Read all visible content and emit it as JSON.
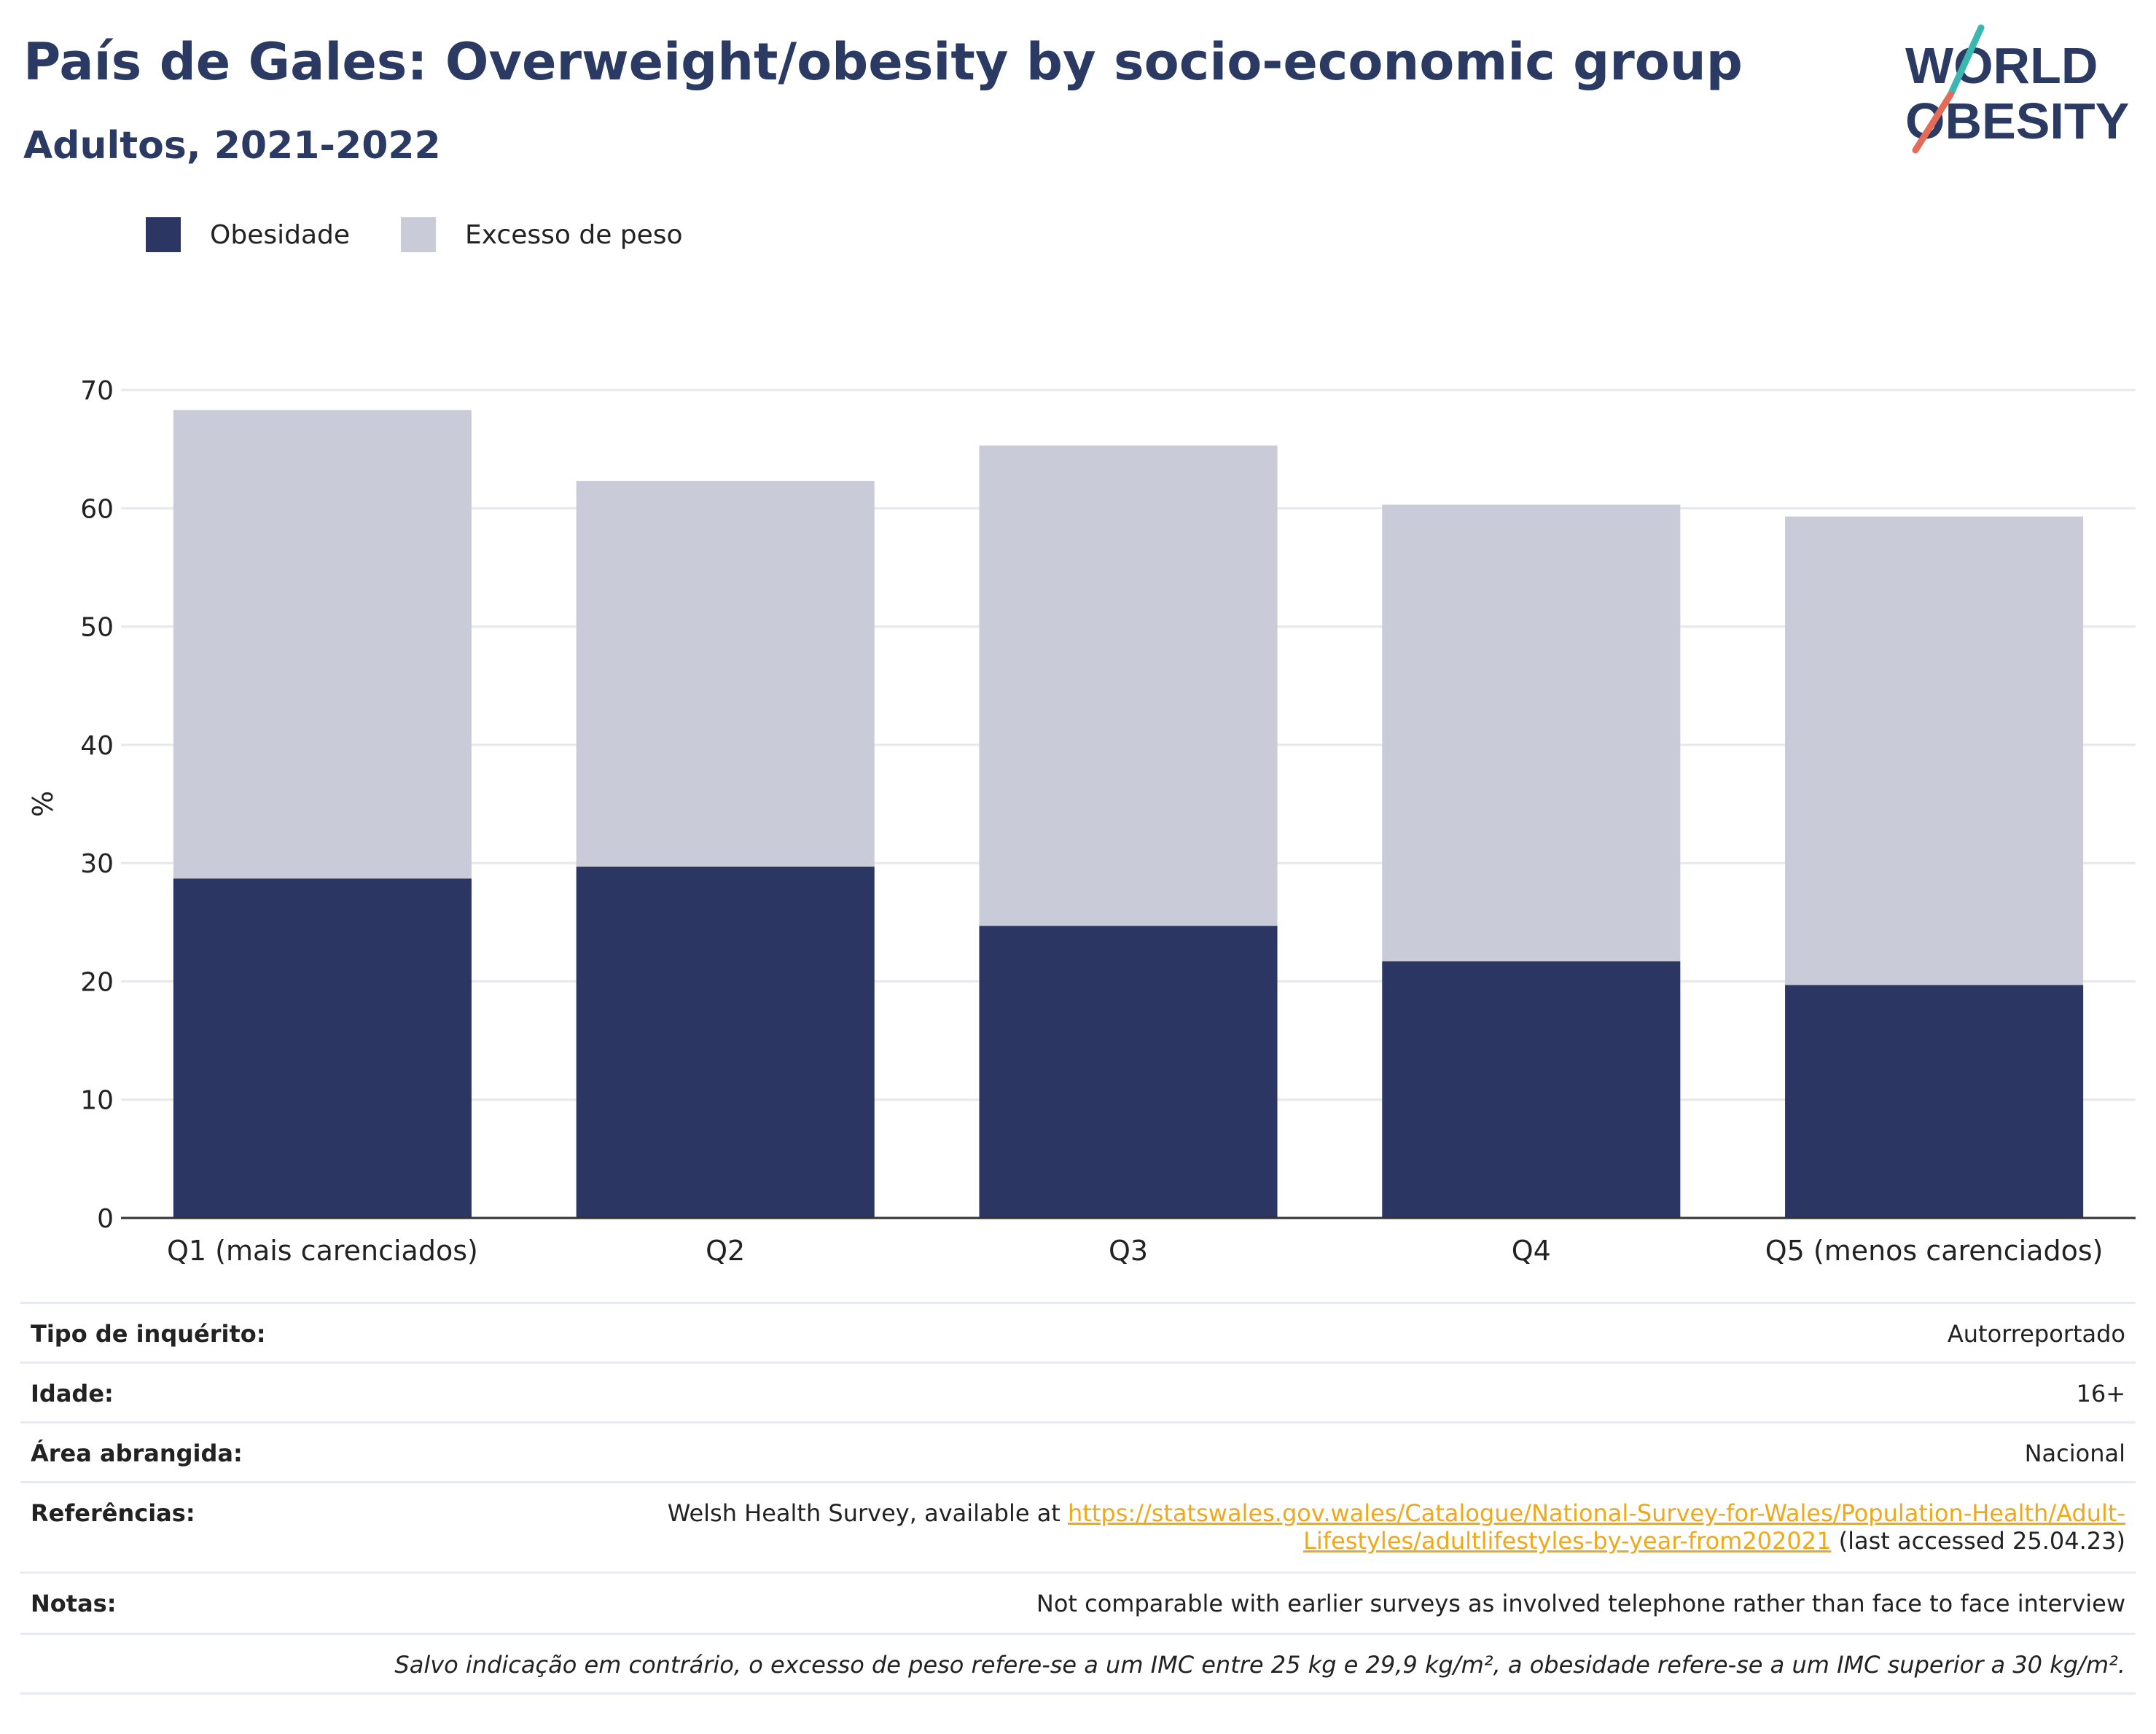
{
  "header": {
    "title": "País de Gales: Overweight/obesity by socio-economic group",
    "subtitle": "Adultos, 2021-2022"
  },
  "logo": {
    "line1": "WORLD",
    "line2": "OBESITY"
  },
  "legend": {
    "items": [
      {
        "label": "Obesidade",
        "color": "#2b3663"
      },
      {
        "label": "Excesso de peso",
        "color": "#c9ccd8"
      }
    ]
  },
  "chart_data": {
    "type": "bar",
    "stacked": true,
    "categories": [
      "Q1 (mais carenciados)",
      "Q2",
      "Q3",
      "Q4",
      "Q5 (menos carenciados)"
    ],
    "series": [
      {
        "name": "Obesidade",
        "values": [
          28.7,
          29.7,
          24.7,
          21.7,
          19.7
        ],
        "color": "#2b3663"
      },
      {
        "name": "Excesso de peso",
        "values": [
          39.6,
          32.6,
          40.6,
          38.6,
          39.6
        ],
        "color": "#c9ccd8"
      }
    ],
    "totals": [
      68.3,
      62.3,
      65.3,
      60.3,
      59.3
    ],
    "ylabel": "%",
    "xlabel": "",
    "ylim": [
      0,
      70
    ],
    "yticks": [
      0,
      10,
      20,
      30,
      40,
      50,
      60,
      70
    ],
    "grid": true,
    "legend_position": "top-left"
  },
  "info": {
    "rows": [
      {
        "label": "Tipo de inquérito:",
        "value": "Autorreportado"
      },
      {
        "label": "Idade:",
        "value": "16+"
      },
      {
        "label": "Área abrangida:",
        "value": "Nacional"
      }
    ],
    "references": {
      "label": "Referências:",
      "prefix": "Welsh Health Survey, available at ",
      "link_line1": "https://statswales.gov.wales/Catalogue/National-Survey-for-Wales/Population-Health/Adult-",
      "link_line2": "Lifestyles/adultlifestyles-by-year-from202021",
      "suffix": " (last accessed 25.04.23)"
    },
    "notes": {
      "label": "Notas:",
      "value": "Not comparable with earlier surveys as involved telephone rather than face to face interview"
    },
    "footnote": "Salvo indicação em contrário, o excesso de peso refere-se a um IMC entre 25 kg e 29,9 kg/m², a obesidade refere-se a um IMC superior a 30 kg/m²."
  }
}
